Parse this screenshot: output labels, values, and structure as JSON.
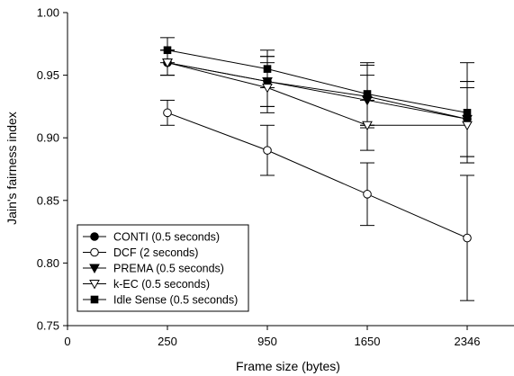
{
  "chart_data": {
    "type": "line",
    "title": "",
    "xlabel": "Frame size (bytes)",
    "ylabel": "Jain's fairness index",
    "x_tick_labels": [
      "0",
      "250",
      "950",
      "1650",
      "2346"
    ],
    "categories": [
      "250",
      "950",
      "1650",
      "2346"
    ],
    "ylim": [
      0.75,
      1.0
    ],
    "y_ticks": [
      0.75,
      0.8,
      0.85,
      0.9,
      0.95,
      1.0
    ],
    "y_tick_labels": [
      "0.75",
      "0.80",
      "0.85",
      "0.90",
      "0.95",
      "1.00"
    ],
    "grid": false,
    "legend_position": "bottom-left",
    "series": [
      {
        "name": "CONTI (0.5 seconds)",
        "marker": "filled-circle",
        "values": [
          0.96,
          0.945,
          0.933,
          0.915
        ],
        "error": [
          0.01,
          0.02,
          0.025,
          0.03
        ]
      },
      {
        "name": "DCF (2 seconds)",
        "marker": "open-circle",
        "values": [
          0.92,
          0.89,
          0.855,
          0.82
        ],
        "error": [
          0.01,
          0.02,
          0.025,
          0.05
        ]
      },
      {
        "name": "PREMA (0.5 seconds)",
        "marker": "filled-triangle-down",
        "values": [
          0.96,
          0.945,
          0.93,
          0.915
        ],
        "error": [
          0.01,
          0.02,
          0.02,
          0.03
        ]
      },
      {
        "name": "k-EC (0.5 seconds)",
        "marker": "open-triangle-down",
        "values": [
          0.96,
          0.94,
          0.91,
          0.91
        ],
        "error": [
          0.01,
          0.02,
          0.02,
          0.03
        ]
      },
      {
        "name": "Idle Sense (0.5 seconds)",
        "marker": "filled-square",
        "values": [
          0.97,
          0.955,
          0.935,
          0.92
        ],
        "error": [
          0.01,
          0.015,
          0.025,
          0.04
        ]
      }
    ]
  }
}
